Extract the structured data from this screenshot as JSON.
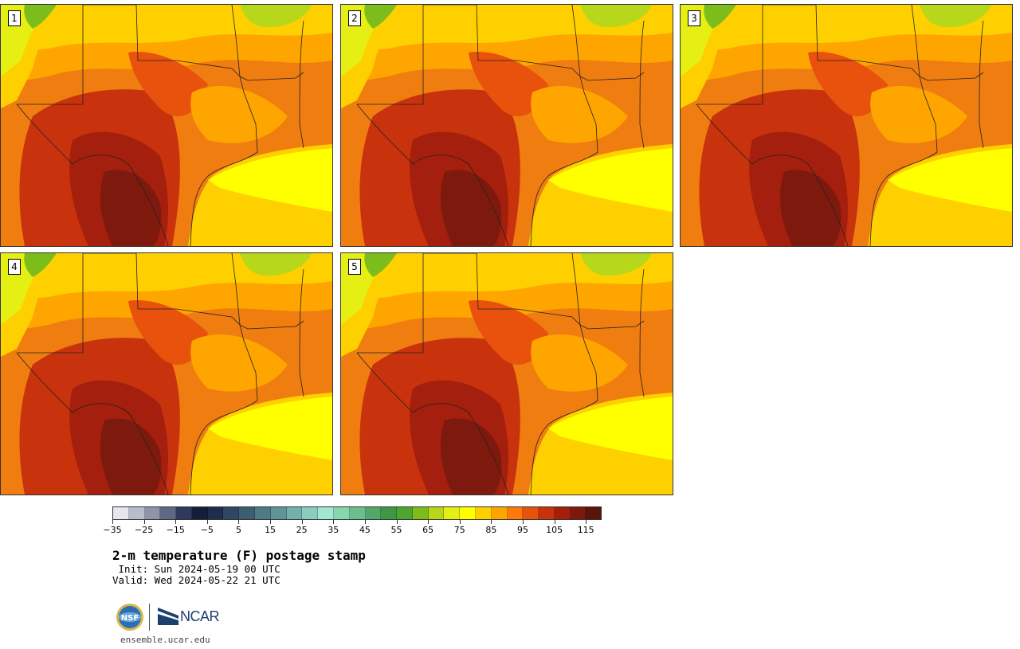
{
  "title": "2-m temperature (F) postage stamp",
  "init": " Init: Sun 2024-05-19 00 UTC",
  "valid": "Valid: Wed 2024-05-22 21 UTC",
  "website": "ensemble.ucar.edu",
  "logos": {
    "nsf_text": "NSF",
    "ncar_text": "NCAR"
  },
  "panels": [
    {
      "label": "1"
    },
    {
      "label": "2"
    },
    {
      "label": "3"
    },
    {
      "label": "4"
    },
    {
      "label": "5"
    }
  ],
  "colorbar": {
    "ticks": [
      "−35",
      "−25",
      "−15",
      "−5",
      "5",
      "15",
      "25",
      "35",
      "45",
      "55",
      "65",
      "75",
      "85",
      "95",
      "105",
      "115"
    ],
    "colors": [
      "#e6e7ee",
      "#b9bccb",
      "#8f94aa",
      "#5f6885",
      "#2f3a5c",
      "#141e3a",
      "#1e2d4c",
      "#2e4862",
      "#3d5e72",
      "#4f7b85",
      "#5f9596",
      "#73b1ad",
      "#8bccc1",
      "#a3e6d4",
      "#86d6ae",
      "#6cbe8c",
      "#52a86a",
      "#3f9645",
      "#4fa531",
      "#7cbd1c",
      "#b6d71a",
      "#e6ef13",
      "#ffff00",
      "#ffd000",
      "#ffa500",
      "#ff7a08",
      "#e8520d",
      "#c8320c",
      "#a41f0d",
      "#7d1a0d",
      "#5a1409"
    ],
    "first_value": -35,
    "last_value": 120
  }
}
